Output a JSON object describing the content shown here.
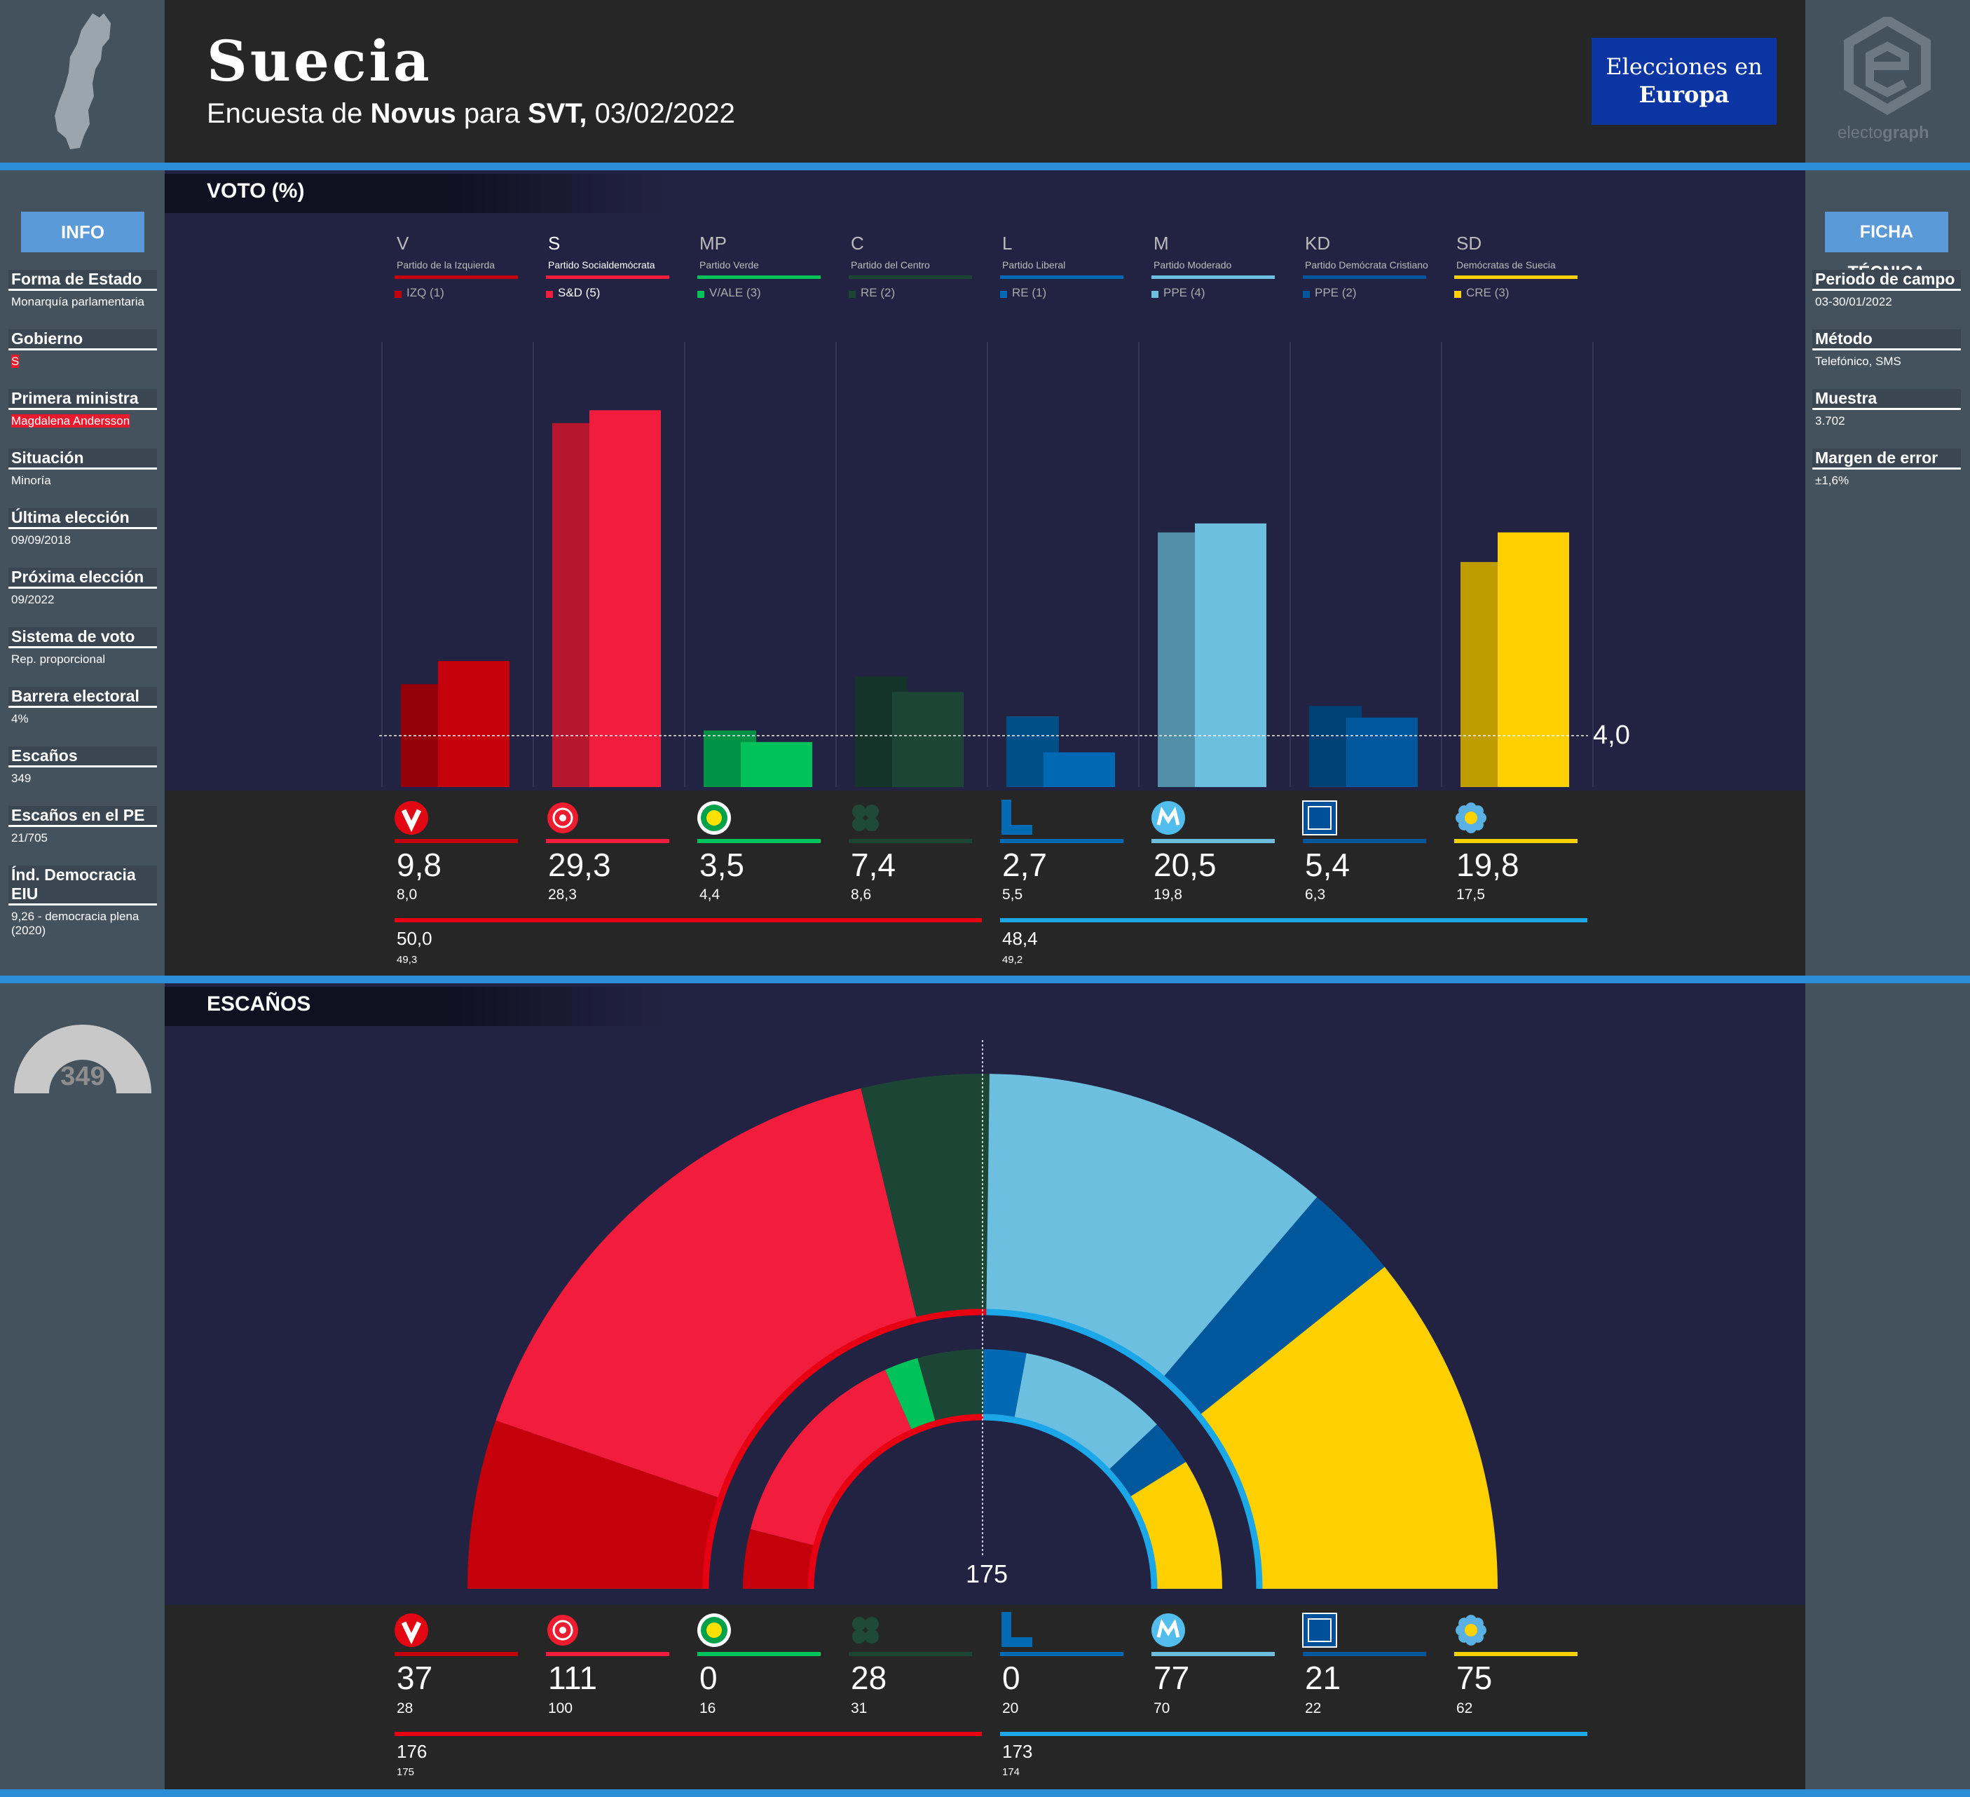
{
  "header": {
    "country": "Suecia",
    "subtitle_pre": "Encuesta de ",
    "pollster": "Novus",
    "subtitle_mid": " para ",
    "media": "SVT,",
    "subtitle_date": " 03/02/2022",
    "badge_line1": "Elecciones en",
    "badge_line2": "Europa",
    "brand_pre": "electo",
    "brand_post": "graph"
  },
  "sections": {
    "vote": "VOTO (%)",
    "seats": "ESCAÑOS"
  },
  "info": {
    "title": "INFO",
    "items": [
      {
        "label": "Forma de Estado",
        "value": "Monarquía parlamentaria"
      },
      {
        "label": "Gobierno",
        "value": "S"
      },
      {
        "label": "Primera ministra",
        "value": "Magdalena Andersson"
      },
      {
        "label": "Situación",
        "value": "Minoría"
      },
      {
        "label": "Última elección",
        "value": "09/09/2018"
      },
      {
        "label": "Próxima elección",
        "value": "09/2022"
      },
      {
        "label": "Sistema de voto",
        "value": "Rep. proporcional"
      },
      {
        "label": "Barrera electoral",
        "value": "4%"
      },
      {
        "label": "Escaños",
        "value": "349"
      },
      {
        "label": "Escaños en el PE",
        "value": "21/705"
      },
      {
        "label": "Índ. Democracia EIU",
        "value": "9,26 - democracia plena (2020)"
      }
    ]
  },
  "ficha": {
    "title": "FICHA TÉCNICA",
    "items": [
      {
        "label": "Periodo de campo",
        "value": "03-30/01/2022"
      },
      {
        "label": "Método",
        "value": "Telefónico, SMS"
      },
      {
        "label": "Muestra",
        "value": "3.702"
      },
      {
        "label": "Margen de error",
        "value": "±1,6%"
      }
    ]
  },
  "colors": {
    "V": "#c4000b",
    "S": "#f21d3d",
    "MP": "#00c25a",
    "C": "#1c4536",
    "L": "#0069b4",
    "M": "#6dbfe0",
    "KD": "#00579c",
    "SD": "#ffd000",
    "left_bloc": "#e60012",
    "right_bloc": "#1ba7e8"
  },
  "chart_data": [
    {
      "type": "bar",
      "title": "VOTO (%)",
      "categories": [
        "V",
        "S",
        "MP",
        "C",
        "L",
        "M",
        "KD",
        "SD"
      ],
      "party_names": [
        "Partido de la Izquierda",
        "Partido Socialdemócrata",
        "Partido Verde",
        "Partido del Centro",
        "Partido Liberal",
        "Partido Moderado",
        "Partido Demócrata Cristiano",
        "Demócratas de Suecia"
      ],
      "party_groups": [
        "IZQ (1)",
        "S&D (5)",
        "V/ALE (3)",
        "RE (2)",
        "RE (1)",
        "PPE (4)",
        "PPE (2)",
        "CRE (3)"
      ],
      "series": [
        {
          "values": [
            8.0,
            28.3,
            4.4,
            8.6,
            5.5,
            19.8,
            6.3,
            17.5
          ]
        },
        {
          "values": [
            9.8,
            29.3,
            3.5,
            7.4,
            2.7,
            20.5,
            5.4,
            19.8
          ]
        }
      ],
      "value_labels": [
        "9,8",
        "29,3",
        "3,5",
        "7,4",
        "2,7",
        "20,5",
        "5,4",
        "19,8"
      ],
      "previous_labels": [
        "8,0",
        "28,3",
        "4,4",
        "8,6",
        "5,5",
        "19,8",
        "6,3",
        "17,5"
      ],
      "threshold": 4.0,
      "threshold_label": "4,0",
      "blocs": [
        {
          "value": "50,0",
          "previous": "49,3"
        },
        {
          "value": "48,4",
          "previous": "49,2"
        }
      ]
    },
    {
      "type": "pie",
      "title": "ESCAÑOS",
      "categories": [
        "V",
        "S",
        "MP",
        "C",
        "L",
        "M",
        "KD",
        "SD"
      ],
      "values": [
        37,
        111,
        0,
        28,
        0,
        77,
        21,
        75
      ],
      "previous": [
        28,
        100,
        16,
        31,
        20,
        70,
        22,
        62
      ],
      "value_labels": [
        "37",
        "111",
        "0",
        "28",
        "0",
        "77",
        "21",
        "75"
      ],
      "previous_labels": [
        "28",
        "100",
        "16",
        "31",
        "20",
        "70",
        "22",
        "62"
      ],
      "majority": "175",
      "total": "349",
      "blocs": [
        {
          "value": "176",
          "previous": "175"
        },
        {
          "value": "173",
          "previous": "174"
        }
      ]
    }
  ]
}
